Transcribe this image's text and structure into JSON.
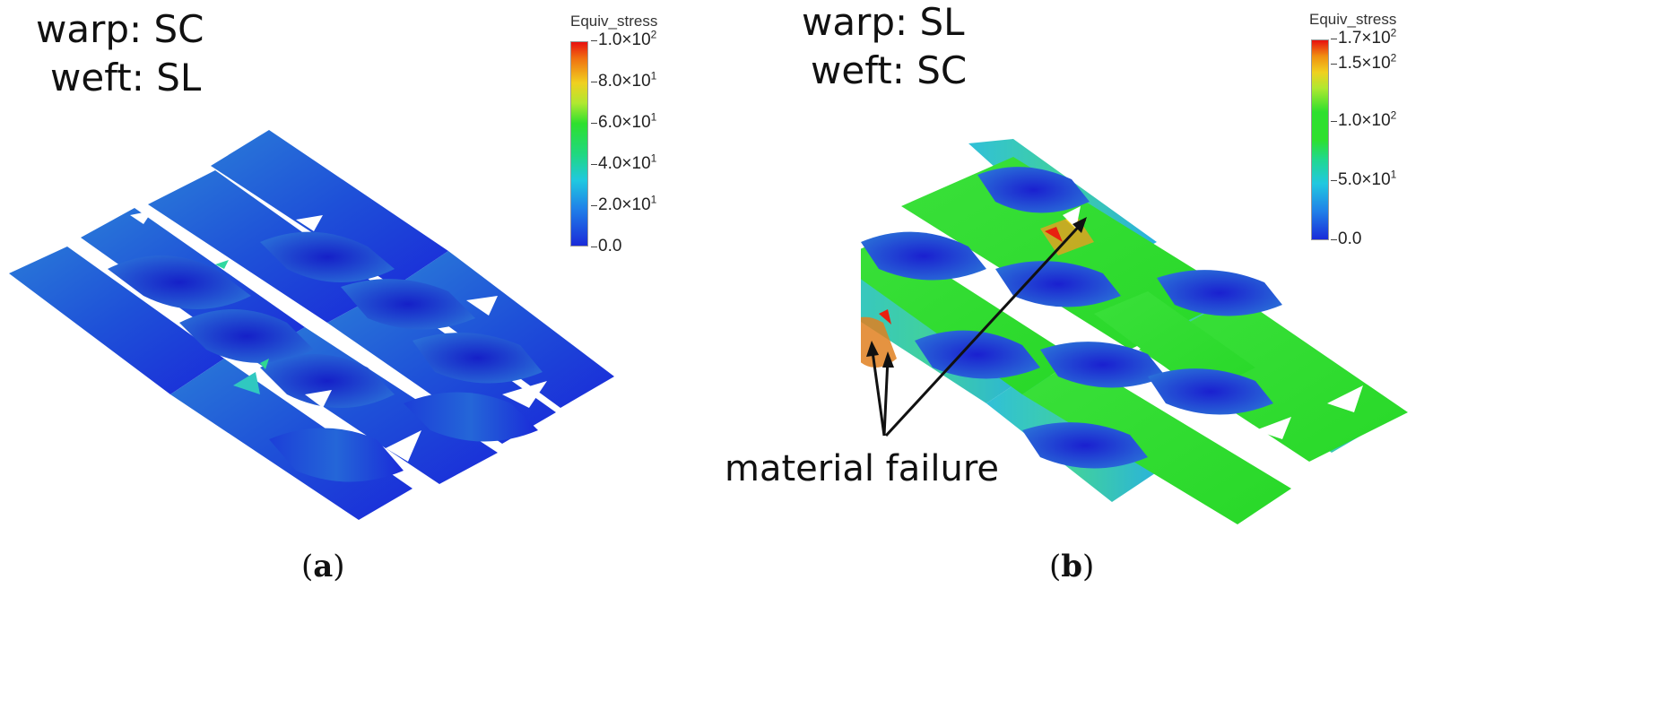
{
  "panel_a": {
    "warp": "warp: SC",
    "weft": "weft: SL",
    "caption_open": "(",
    "caption_letter": "a",
    "caption_close": ")",
    "colorbar": {
      "title": "Equiv_stress",
      "ticks": [
        {
          "mant": "1.0×10",
          "exp": "2"
        },
        {
          "mant": "8.0×10",
          "exp": "1"
        },
        {
          "mant": "6.0×10",
          "exp": "1"
        },
        {
          "mant": "4.0×10",
          "exp": "1"
        },
        {
          "mant": "2.0×10",
          "exp": "1"
        },
        {
          "mant": "0.0",
          "exp": ""
        }
      ]
    }
  },
  "panel_b": {
    "warp": "warp: SL",
    "weft": "weft: SC",
    "caption_open": "(",
    "caption_letter": "b",
    "caption_close": ")",
    "annotation": "material failure",
    "colorbar": {
      "title": "Equiv_stress",
      "ticks": [
        {
          "mant": "1.7×10",
          "exp": "2"
        },
        {
          "mant": "1.5×10",
          "exp": "2"
        },
        {
          "mant": "1.0×10",
          "exp": "2"
        },
        {
          "mant": "5.0×10",
          "exp": "1"
        },
        {
          "mant": "0.0",
          "exp": ""
        }
      ]
    }
  },
  "colors": {
    "low": "#1a2bd9",
    "mid_low": "#1ea8e0",
    "mid": "#2ee02e",
    "high": "#f0e020",
    "max": "#e82010"
  }
}
